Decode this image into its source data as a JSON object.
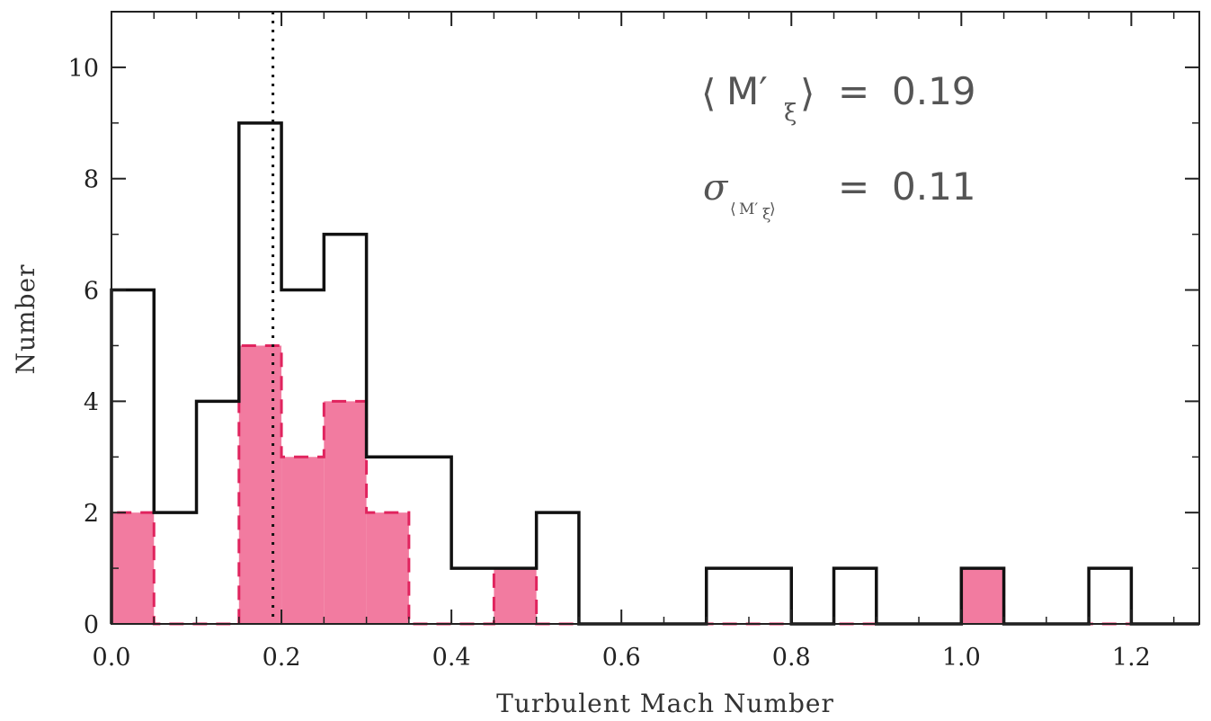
{
  "chart_data": {
    "type": "bar",
    "xlabel": "Turbulent Mach Number",
    "ylabel": "Number",
    "xlim": [
      0.0,
      1.28
    ],
    "ylim": [
      0,
      11
    ],
    "bin_width": 0.05,
    "grid": false,
    "xticks": [
      "0.0",
      "0.2",
      "0.4",
      "0.6",
      "0.8",
      "1.0",
      "1.2"
    ],
    "yticks": [
      "0",
      "2",
      "4",
      "6",
      "8",
      "10"
    ],
    "series": [
      {
        "style": "black-solid-step",
        "color": "#111111",
        "bin_starts": [
          0.0,
          0.05,
          0.1,
          0.15,
          0.2,
          0.25,
          0.3,
          0.35,
          0.4,
          0.45,
          0.5,
          0.55,
          0.6,
          0.65,
          0.7,
          0.75,
          0.8,
          0.85,
          0.9,
          0.95,
          1.0,
          1.05,
          1.1,
          1.15,
          1.2,
          1.25
        ],
        "values": [
          6,
          2,
          4,
          9,
          6,
          7,
          3,
          3,
          1,
          1,
          2,
          0,
          0,
          0,
          1,
          1,
          0,
          1,
          0,
          0,
          1,
          0,
          0,
          1,
          0,
          0
        ]
      },
      {
        "style": "red-dashed-filled-step",
        "color": "#e0245e",
        "fill": "#f27ba0",
        "bin_starts": [
          0.0,
          0.05,
          0.1,
          0.15,
          0.2,
          0.25,
          0.3,
          0.35,
          0.4,
          0.45,
          0.5,
          0.55,
          0.6,
          0.65,
          0.7,
          0.75,
          0.8,
          0.85,
          0.9,
          0.95,
          1.0,
          1.05,
          1.1,
          1.15,
          1.2,
          1.25
        ],
        "values": [
          2,
          0,
          0,
          5,
          3,
          4,
          2,
          0,
          0,
          1,
          0,
          0,
          0,
          0,
          0,
          0,
          0,
          0,
          0,
          0,
          1,
          0,
          0,
          0,
          0,
          0
        ]
      }
    ],
    "vertical_line": {
      "x": 0.19,
      "style": "dotted"
    },
    "annotations": {
      "mean": {
        "lhs": "M′",
        "lhs_sub": "ξ",
        "equals": "=",
        "value": "0.19"
      },
      "sigma": {
        "symbol": "σ",
        "sub": "M′",
        "sub_sub": "ξ",
        "equals": "=",
        "value": "0.11"
      }
    }
  }
}
